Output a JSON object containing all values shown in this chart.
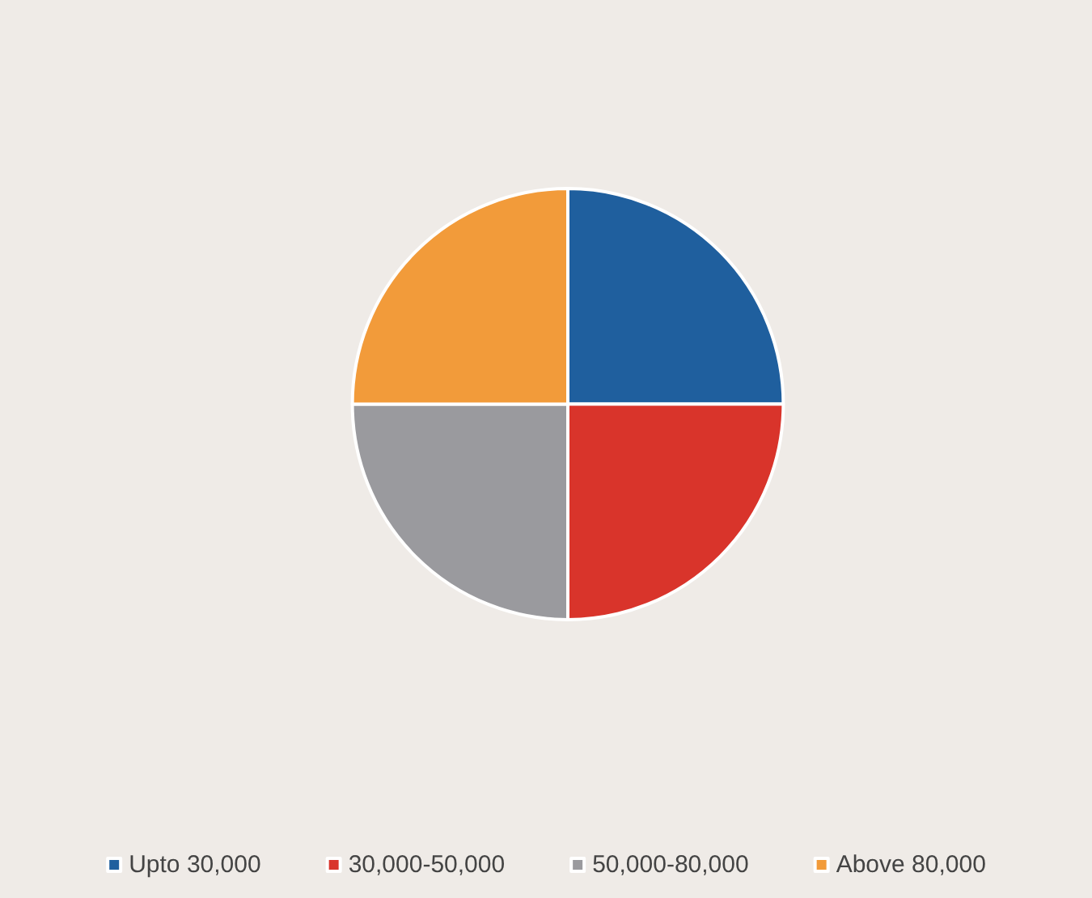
{
  "chart_data": {
    "type": "pie",
    "categories": [
      "Upto 30,000",
      "30,000-50,000",
      "50,000-80,000",
      "Above 80,000"
    ],
    "values": [
      25,
      25,
      25,
      25
    ],
    "colors": [
      "#1f5f9e",
      "#d9342b",
      "#9a9a9e",
      "#f29b3a"
    ],
    "legend": "bottom"
  }
}
